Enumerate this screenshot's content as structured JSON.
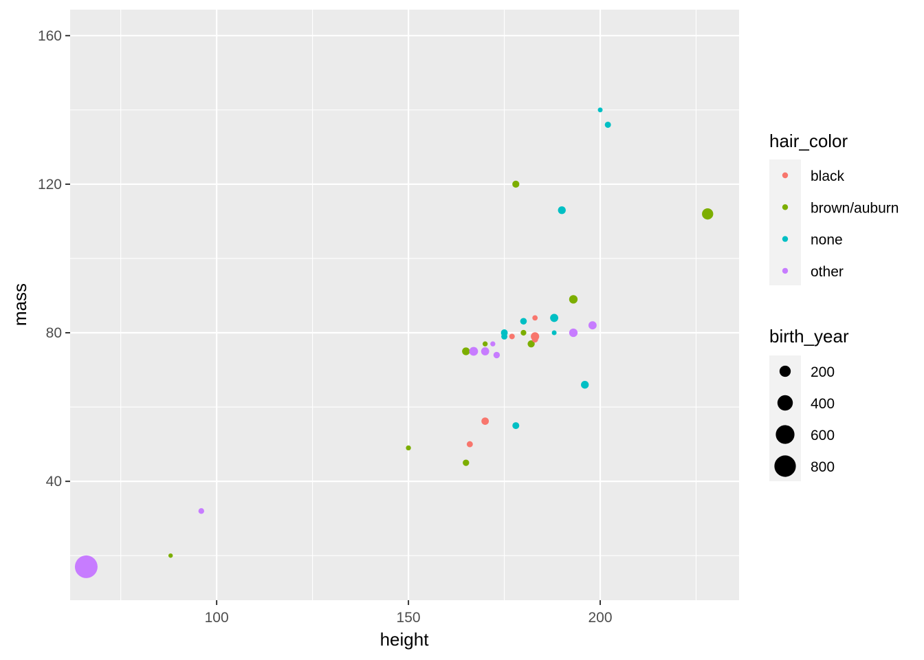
{
  "chart_data": {
    "type": "scatter",
    "xlabel": "height",
    "ylabel": "mass",
    "xlim": [
      61.8,
      236.2
    ],
    "ylim": [
      8.0,
      167.0
    ],
    "x_ticks": [
      100,
      150,
      200
    ],
    "y_ticks": [
      40,
      80,
      120,
      160
    ],
    "grid": true,
    "legend_placement": "right",
    "color_legend": {
      "title": "hair_color",
      "entries": [
        {
          "label": "black",
          "color": "#F8766D"
        },
        {
          "label": "brown/auburn",
          "color": "#7CAE00"
        },
        {
          "label": "none",
          "color": "#00BFC4"
        },
        {
          "label": "other",
          "color": "#C77CFF"
        }
      ]
    },
    "size_legend": {
      "title": "birth_year",
      "entries": [
        {
          "label": "200",
          "value": 200
        },
        {
          "label": "400",
          "value": 400
        },
        {
          "label": "600",
          "value": 600
        },
        {
          "label": "800",
          "value": 800
        }
      ]
    },
    "points": [
      {
        "x": 66,
        "y": 17,
        "hair_color": "other",
        "birth_year": 896
      },
      {
        "x": 88,
        "y": 20,
        "hair_color": "brown/auburn",
        "birth_year": 8
      },
      {
        "x": 96,
        "y": 32,
        "hair_color": "other",
        "birth_year": 33
      },
      {
        "x": 150,
        "y": 49,
        "hair_color": "brown/auburn",
        "birth_year": 19
      },
      {
        "x": 165,
        "y": 45,
        "hair_color": "brown/auburn",
        "birth_year": 46.9
      },
      {
        "x": 165,
        "y": 75,
        "hair_color": "brown/auburn",
        "birth_year": 82
      },
      {
        "x": 166,
        "y": 50,
        "hair_color": "black",
        "birth_year": 40
      },
      {
        "x": 167,
        "y": 75,
        "hair_color": "other",
        "birth_year": 112
      },
      {
        "x": 170,
        "y": 56.2,
        "hair_color": "black",
        "birth_year": 72
      },
      {
        "x": 170,
        "y": 77,
        "hair_color": "brown/auburn",
        "birth_year": 19
      },
      {
        "x": 170,
        "y": 75,
        "hair_color": "other",
        "birth_year": 91
      },
      {
        "x": 172,
        "y": 77,
        "hair_color": "other",
        "birth_year": 19
      },
      {
        "x": 173,
        "y": 74,
        "hair_color": "other",
        "birth_year": 48
      },
      {
        "x": 175,
        "y": 80,
        "hair_color": "none",
        "birth_year": 57
      },
      {
        "x": 175,
        "y": 79,
        "hair_color": "none",
        "birth_year": 41.9
      },
      {
        "x": 177,
        "y": 79,
        "hair_color": "black",
        "birth_year": 29
      },
      {
        "x": 178,
        "y": 120,
        "hair_color": "brown/auburn",
        "birth_year": 62
      },
      {
        "x": 178,
        "y": 55,
        "hair_color": "none",
        "birth_year": 58
      },
      {
        "x": 180,
        "y": 80,
        "hair_color": "brown/auburn",
        "birth_year": 31
      },
      {
        "x": 180,
        "y": 83.1,
        "hair_color": "none",
        "birth_year": 52
      },
      {
        "x": 182,
        "y": 77,
        "hair_color": "brown/auburn",
        "birth_year": 64
      },
      {
        "x": 183,
        "y": 84,
        "hair_color": "black",
        "birth_year": 24
      },
      {
        "x": 183,
        "y": 79,
        "hair_color": "black",
        "birth_year": 100
      },
      {
        "x": 183,
        "y": 78.2,
        "hair_color": "black",
        "birth_year": 41
      },
      {
        "x": 188,
        "y": 84,
        "hair_color": "none",
        "birth_year": 92
      },
      {
        "x": 188,
        "y": 80,
        "hair_color": "none",
        "birth_year": 15
      },
      {
        "x": 190,
        "y": 113,
        "hair_color": "none",
        "birth_year": 82
      },
      {
        "x": 193,
        "y": 89,
        "hair_color": "brown/auburn",
        "birth_year": 102
      },
      {
        "x": 193,
        "y": 80,
        "hair_color": "other",
        "birth_year": 102
      },
      {
        "x": 196,
        "y": 66,
        "hair_color": "none",
        "birth_year": 82
      },
      {
        "x": 198,
        "y": 82,
        "hair_color": "other",
        "birth_year": 92
      },
      {
        "x": 200,
        "y": 140,
        "hair_color": "none",
        "birth_year": 15
      },
      {
        "x": 202,
        "y": 136,
        "hair_color": "none",
        "birth_year": 41.9
      },
      {
        "x": 228,
        "y": 112,
        "hair_color": "brown/auburn",
        "birth_year": 200
      }
    ]
  }
}
